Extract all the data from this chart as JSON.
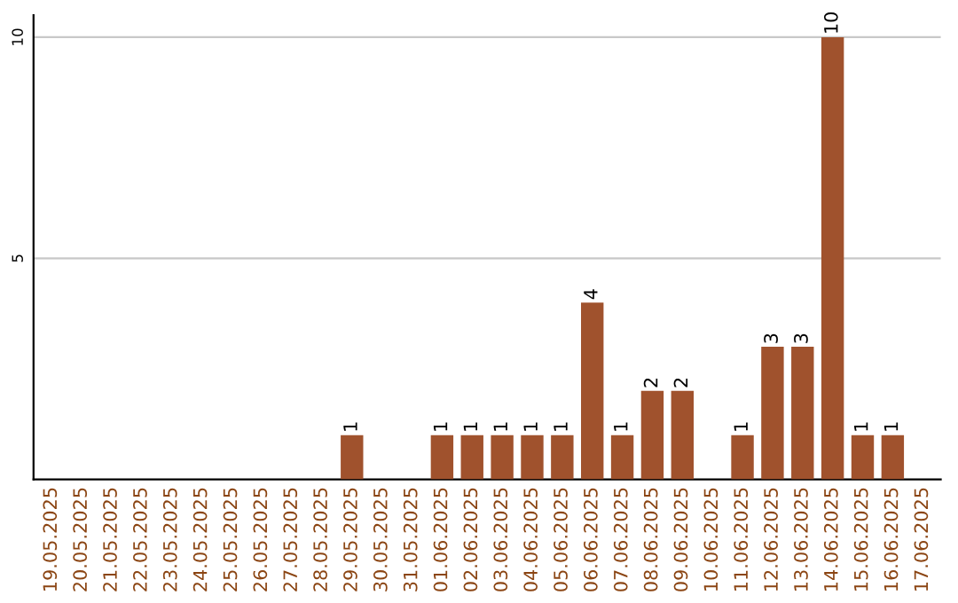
{
  "chart_data": {
    "type": "bar",
    "categories": [
      "19.05.2025",
      "20.05.2025",
      "21.05.2025",
      "22.05.2025",
      "23.05.2025",
      "24.05.2025",
      "25.05.2025",
      "26.05.2025",
      "27.05.2025",
      "28.05.2025",
      "29.05.2025",
      "30.05.2025",
      "31.05.2025",
      "01.06.2025",
      "02.06.2025",
      "03.06.2025",
      "04.06.2025",
      "05.06.2025",
      "06.06.2025",
      "07.06.2025",
      "08.06.2025",
      "09.06.2025",
      "10.06.2025",
      "11.06.2025",
      "12.06.2025",
      "13.06.2025",
      "14.06.2025",
      "15.06.2025",
      "16.06.2025",
      "17.06.2025"
    ],
    "values": [
      0,
      0,
      0,
      0,
      0,
      0,
      0,
      0,
      0,
      0,
      1,
      0,
      0,
      1,
      1,
      1,
      1,
      1,
      4,
      1,
      2,
      2,
      0,
      1,
      3,
      3,
      10,
      1,
      1,
      0
    ],
    "value_labels": [
      null,
      null,
      null,
      null,
      null,
      null,
      null,
      null,
      null,
      null,
      "1",
      null,
      null,
      "1",
      "1",
      "1",
      "1",
      "1",
      "4",
      "1",
      "2",
      "2",
      null,
      "1",
      "3",
      "3",
      "10",
      "1",
      "1",
      null
    ],
    "color": "#a0522d",
    "ylim": [
      0,
      10.5
    ],
    "yticks": [
      5,
      10
    ],
    "grid": "y"
  }
}
